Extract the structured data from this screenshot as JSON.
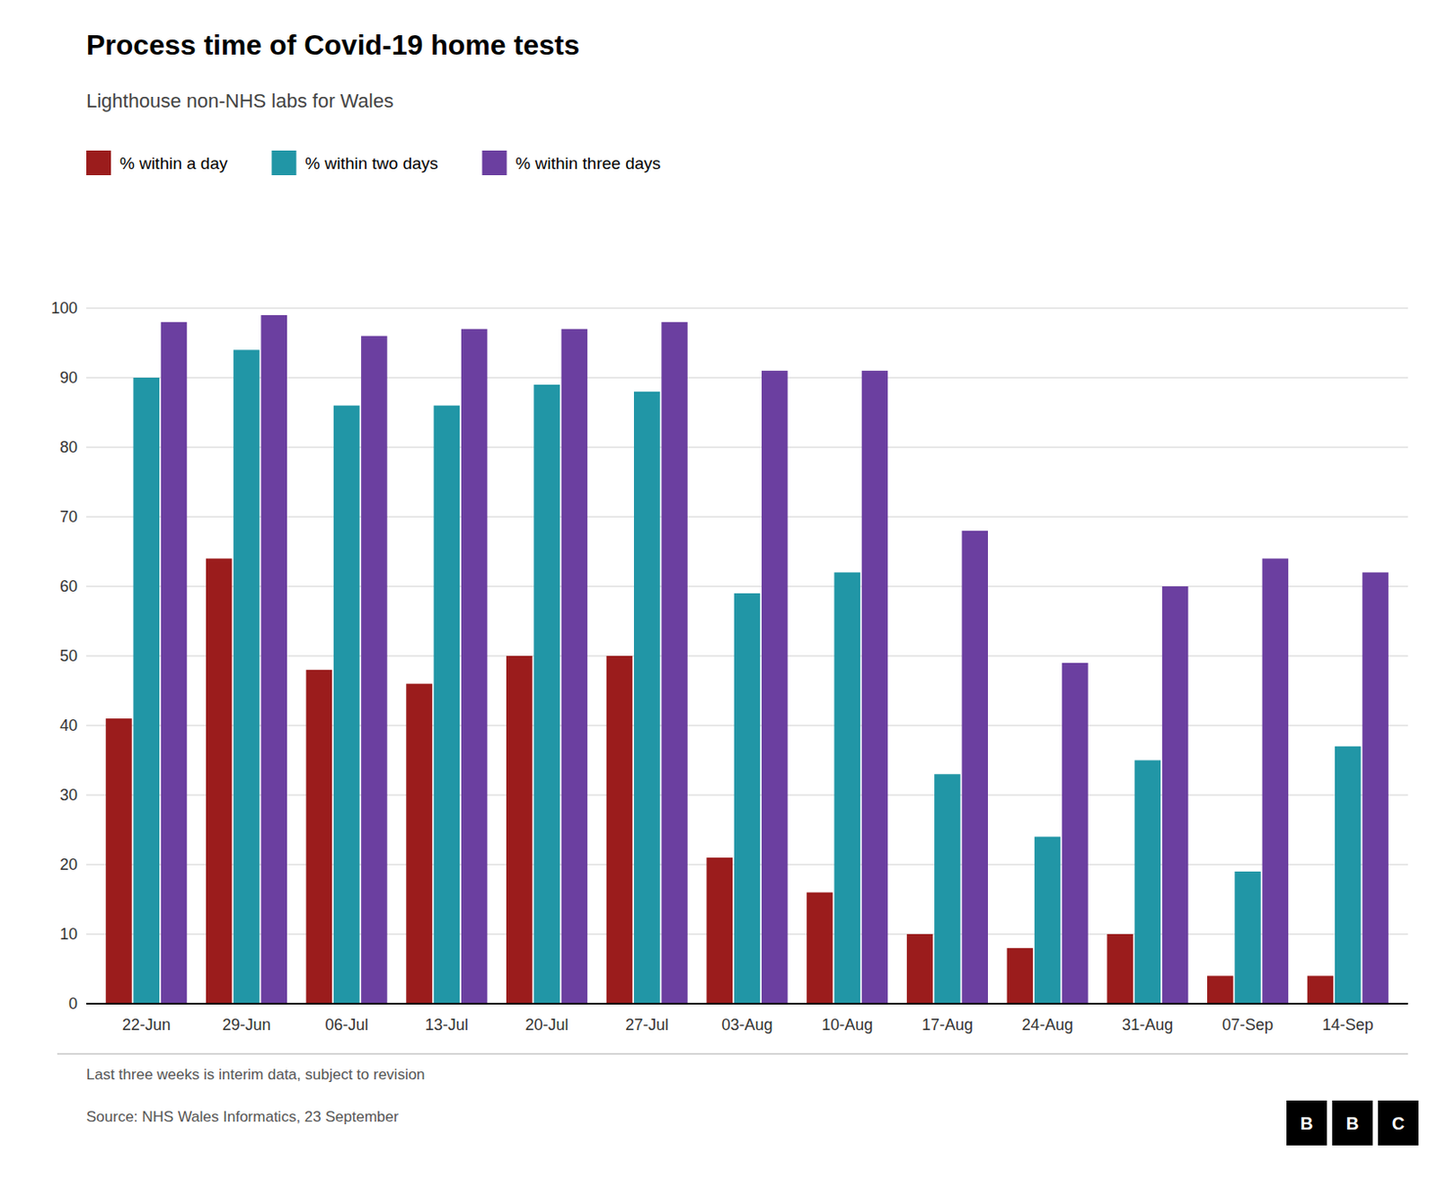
{
  "chart_data": {
    "type": "bar",
    "title": "Process time of Covid-19 home tests",
    "subtitle": "Lighthouse non-NHS labs for Wales",
    "categories": [
      "22-Jun",
      "29-Jun",
      "06-Jul",
      "13-Jul",
      "20-Jul",
      "27-Jul",
      "03-Aug",
      "10-Aug",
      "17-Aug",
      "24-Aug",
      "31-Aug",
      "07-Sep",
      "14-Sep"
    ],
    "series": [
      {
        "name": "% within a day",
        "color": "#9b1c1c",
        "values": [
          41,
          64,
          48,
          46,
          50,
          50,
          21,
          16,
          10,
          8,
          10,
          4,
          4
        ]
      },
      {
        "name": "% within two days",
        "color": "#2196a6",
        "values": [
          90,
          94,
          86,
          86,
          89,
          88,
          59,
          62,
          33,
          24,
          35,
          19,
          37
        ]
      },
      {
        "name": "% within three days",
        "color": "#6b3fa0",
        "values": [
          98,
          99,
          96,
          97,
          97,
          98,
          91,
          91,
          68,
          49,
          60,
          64,
          62
        ]
      }
    ],
    "ylim": [
      0,
      100
    ],
    "yticks": [
      0,
      10,
      20,
      30,
      40,
      50,
      60,
      70,
      80,
      90,
      100
    ],
    "grid": true,
    "legend": "top",
    "footnote": "Last three weeks is interim data, subject to revision",
    "source": "Source: NHS Wales Informatics, 23 September",
    "logo": "BBC"
  }
}
